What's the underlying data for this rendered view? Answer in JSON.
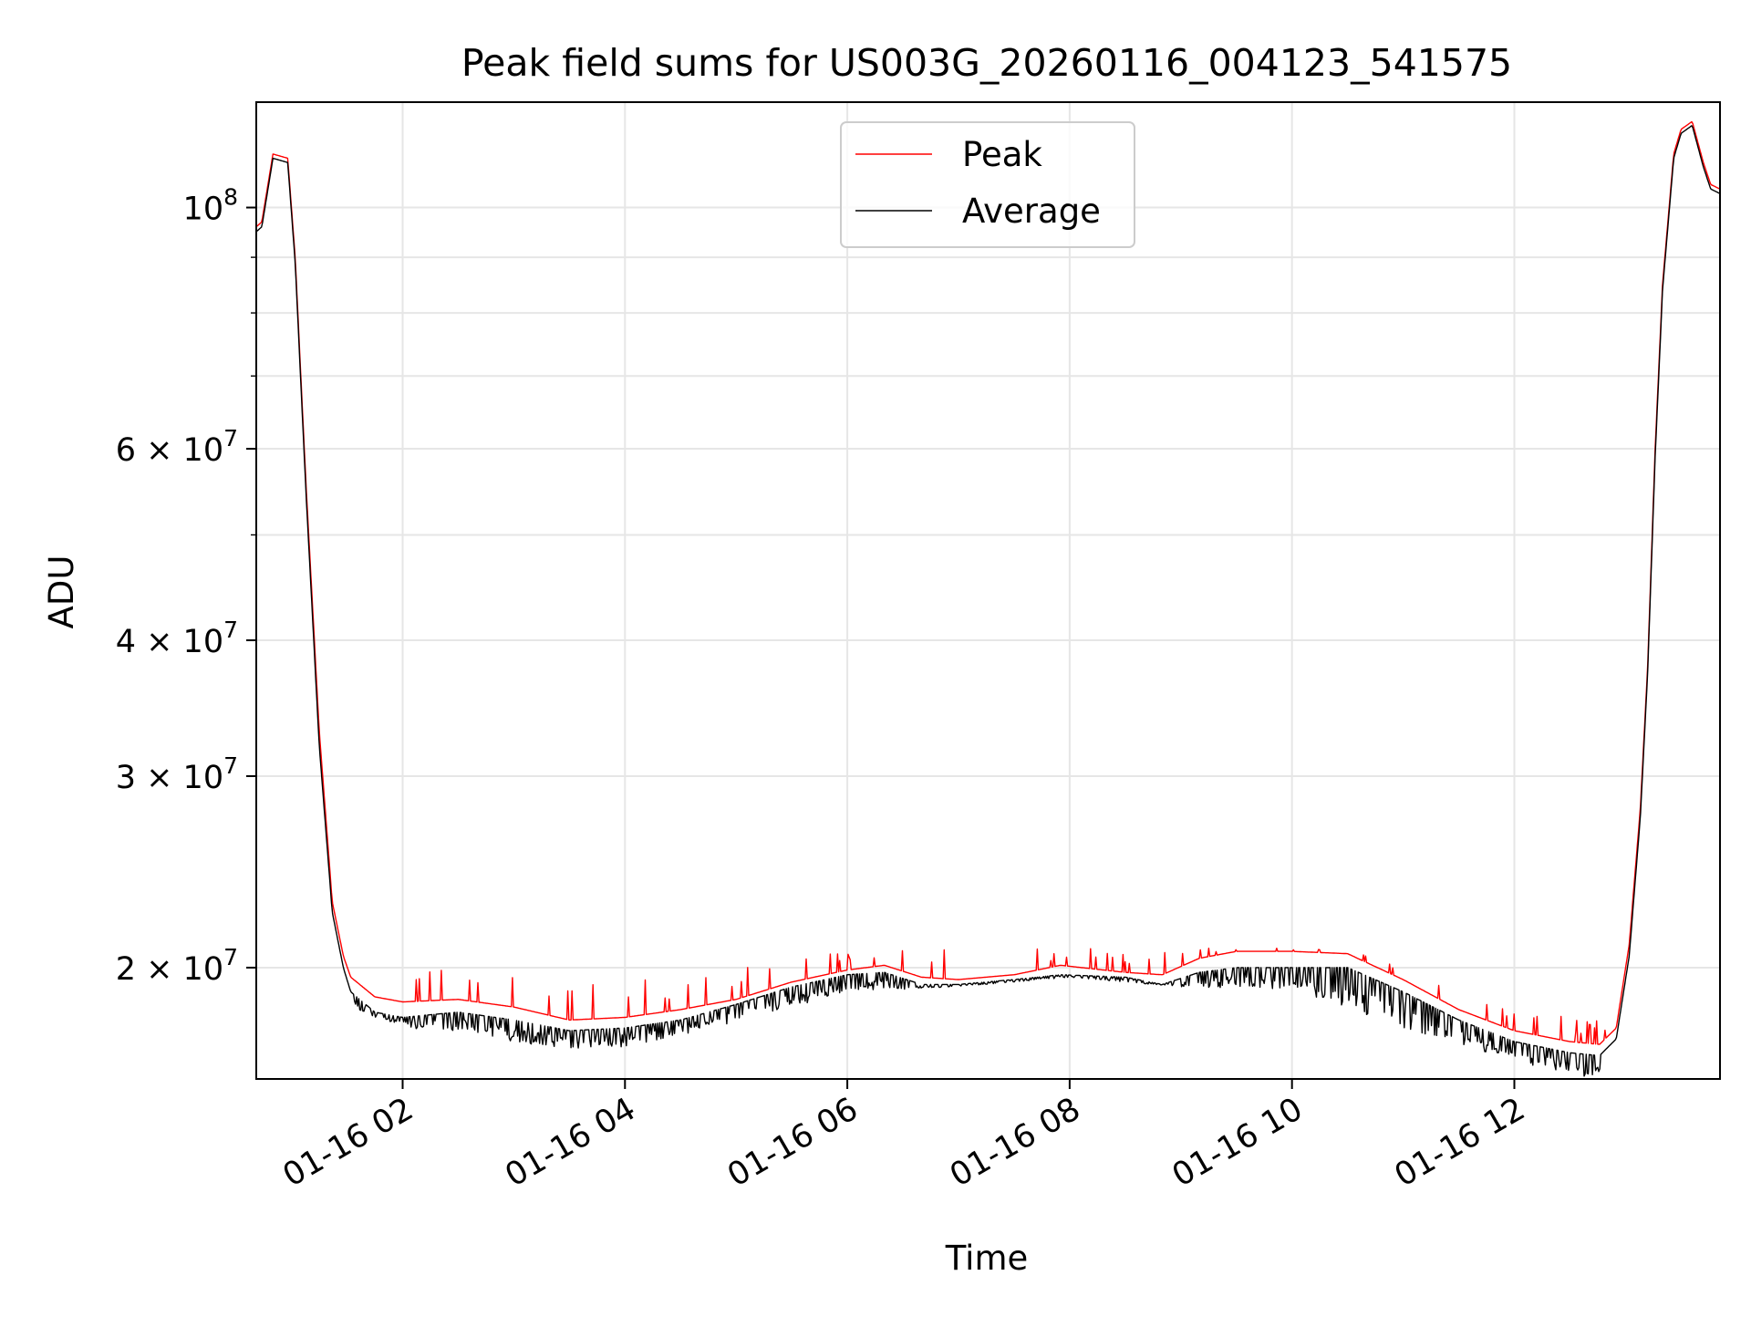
{
  "chart_data": {
    "type": "line",
    "title": "Peak field sums for US003G_20260116_004123_541575",
    "xlabel": "Time",
    "ylabel": "ADU",
    "x_type": "datetime",
    "y_scale": "log",
    "xlim": [
      "2026-01-16 00:41",
      "2026-01-16 13:51"
    ],
    "ylim": [
      15800000,
      125000000
    ],
    "grid": true,
    "legend_position": "upper center",
    "x_ticks": [
      "01-16 02",
      "01-16 04",
      "01-16 06",
      "01-16 08",
      "01-16 10",
      "01-16 12"
    ],
    "y_ticks": [
      {
        "value": 20000000,
        "label": "2 × 10^7"
      },
      {
        "value": 30000000,
        "label": "3 × 10^7"
      },
      {
        "value": 40000000,
        "label": "4 × 10^7"
      },
      {
        "value": 60000000,
        "label": "6 × 10^7"
      },
      {
        "value": 100000000,
        "label": "10^8"
      }
    ],
    "colors": {
      "Peak": "#ff0000",
      "Average": "#000000"
    },
    "series": [
      {
        "name": "Peak",
        "x": [
          "2026-01-16 00:41",
          "2026-01-16 00:44",
          "2026-01-16 00:50",
          "2026-01-16 00:58",
          "2026-01-16 01:02",
          "2026-01-16 01:08",
          "2026-01-16 01:15",
          "2026-01-16 01:22",
          "2026-01-16 01:28",
          "2026-01-16 01:32",
          "2026-01-16 01:45",
          "2026-01-16 02:00",
          "2026-01-16 02:30",
          "2026-01-16 03:00",
          "2026-01-16 03:30",
          "2026-01-16 04:00",
          "2026-01-16 04:30",
          "2026-01-16 05:00",
          "2026-01-16 05:30",
          "2026-01-16 06:00",
          "2026-01-16 06:20",
          "2026-01-16 06:40",
          "2026-01-16 07:00",
          "2026-01-16 07:30",
          "2026-01-16 07:55",
          "2026-01-16 08:30",
          "2026-01-16 08:50",
          "2026-01-16 09:10",
          "2026-01-16 09:30",
          "2026-01-16 10:00",
          "2026-01-16 10:30",
          "2026-01-16 11:00",
          "2026-01-16 11:30",
          "2026-01-16 12:00",
          "2026-01-16 12:30",
          "2026-01-16 12:46",
          "2026-01-16 12:55",
          "2026-01-16 13:02",
          "2026-01-16 13:08",
          "2026-01-16 13:12",
          "2026-01-16 13:16",
          "2026-01-16 13:20",
          "2026-01-16 13:26",
          "2026-01-16 13:30",
          "2026-01-16 13:36",
          "2026-01-16 13:42",
          "2026-01-16 13:46",
          "2026-01-16 13:51"
        ],
        "y": [
          96000000,
          97000000,
          112000000,
          111000000,
          90000000,
          55000000,
          33000000,
          23000000,
          20500000,
          19600000,
          18800000,
          18600000,
          18700000,
          18400000,
          17900000,
          18000000,
          18300000,
          18700000,
          19400000,
          19900000,
          20100000,
          19600000,
          19500000,
          19700000,
          20100000,
          19800000,
          19700000,
          20400000,
          20700000,
          20700000,
          20600000,
          19500000,
          18300000,
          17500000,
          17100000,
          17000000,
          17600000,
          21000000,
          28000000,
          38000000,
          60000000,
          85000000,
          112000000,
          118000000,
          120000000,
          110000000,
          105000000,
          104000000
        ]
      },
      {
        "name": "Average",
        "x": [
          "2026-01-16 00:41",
          "2026-01-16 00:44",
          "2026-01-16 00:50",
          "2026-01-16 00:58",
          "2026-01-16 01:02",
          "2026-01-16 01:08",
          "2026-01-16 01:15",
          "2026-01-16 01:22",
          "2026-01-16 01:28",
          "2026-01-16 01:32",
          "2026-01-16 01:45",
          "2026-01-16 02:00",
          "2026-01-16 02:30",
          "2026-01-16 03:00",
          "2026-01-16 03:30",
          "2026-01-16 04:00",
          "2026-01-16 04:30",
          "2026-01-16 05:00",
          "2026-01-16 05:30",
          "2026-01-16 06:00",
          "2026-01-16 06:20",
          "2026-01-16 06:40",
          "2026-01-16 07:00",
          "2026-01-16 07:30",
          "2026-01-16 07:55",
          "2026-01-16 08:30",
          "2026-01-16 08:50",
          "2026-01-16 09:10",
          "2026-01-16 09:30",
          "2026-01-16 10:00",
          "2026-01-16 10:30",
          "2026-01-16 11:00",
          "2026-01-16 11:30",
          "2026-01-16 12:00",
          "2026-01-16 12:30",
          "2026-01-16 12:46",
          "2026-01-16 12:55",
          "2026-01-16 13:02",
          "2026-01-16 13:08",
          "2026-01-16 13:12",
          "2026-01-16 13:16",
          "2026-01-16 13:20",
          "2026-01-16 13:26",
          "2026-01-16 13:30",
          "2026-01-16 13:36",
          "2026-01-16 13:42",
          "2026-01-16 13:46",
          "2026-01-16 13:51"
        ],
        "y": [
          95000000,
          96000000,
          111000000,
          110000000,
          89000000,
          54000000,
          32000000,
          22500000,
          20000000,
          19000000,
          18200000,
          18000000,
          18200000,
          17900000,
          17500000,
          17600000,
          17900000,
          18500000,
          19200000,
          19700000,
          19800000,
          19300000,
          19300000,
          19500000,
          19700000,
          19600000,
          19300000,
          19800000,
          20000000,
          20000000,
          20000000,
          19000000,
          17900000,
          17100000,
          16700000,
          16600000,
          17200000,
          20500000,
          27500000,
          37500000,
          59000000,
          84000000,
          111000000,
          117000000,
          119000000,
          109000000,
          104000000,
          103000000
        ]
      }
    ],
    "dip_envelope": {
      "x": [
        "2026-01-16 01:35",
        "2026-01-16 02:00",
        "2026-01-16 02:30",
        "2026-01-16 03:00",
        "2026-01-16 03:30",
        "2026-01-16 04:00",
        "2026-01-16 05:00",
        "2026-01-16 06:00",
        "2026-01-16 07:00",
        "2026-01-16 08:00",
        "2026-01-16 09:00",
        "2026-01-16 10:00",
        "2026-01-16 11:00",
        "2026-01-16 12:00",
        "2026-01-16 12:30",
        "2026-01-16 12:50"
      ],
      "y": [
        18300000,
        17600000,
        17500000,
        17100000,
        16800000,
        16900000,
        17800000,
        19000000,
        19200000,
        19600000,
        19200000,
        19100000,
        17600000,
        16400000,
        16000000,
        15700000
      ]
    },
    "spike_envelope": {
      "x": [
        "2026-01-16 01:35",
        "2026-01-16 04:25",
        "2026-01-16 05:30",
        "2026-01-16 06:30",
        "2026-01-16 07:30",
        "2026-01-16 08:30",
        "2026-01-16 09:30",
        "2026-01-16 10:30",
        "2026-01-16 12:00",
        "2026-01-16 12:45"
      ],
      "y": [
        20600000,
        19400000,
        20500000,
        20800000,
        20800000,
        20900000,
        20900000,
        20800000,
        18400000,
        17900000
      ]
    }
  }
}
